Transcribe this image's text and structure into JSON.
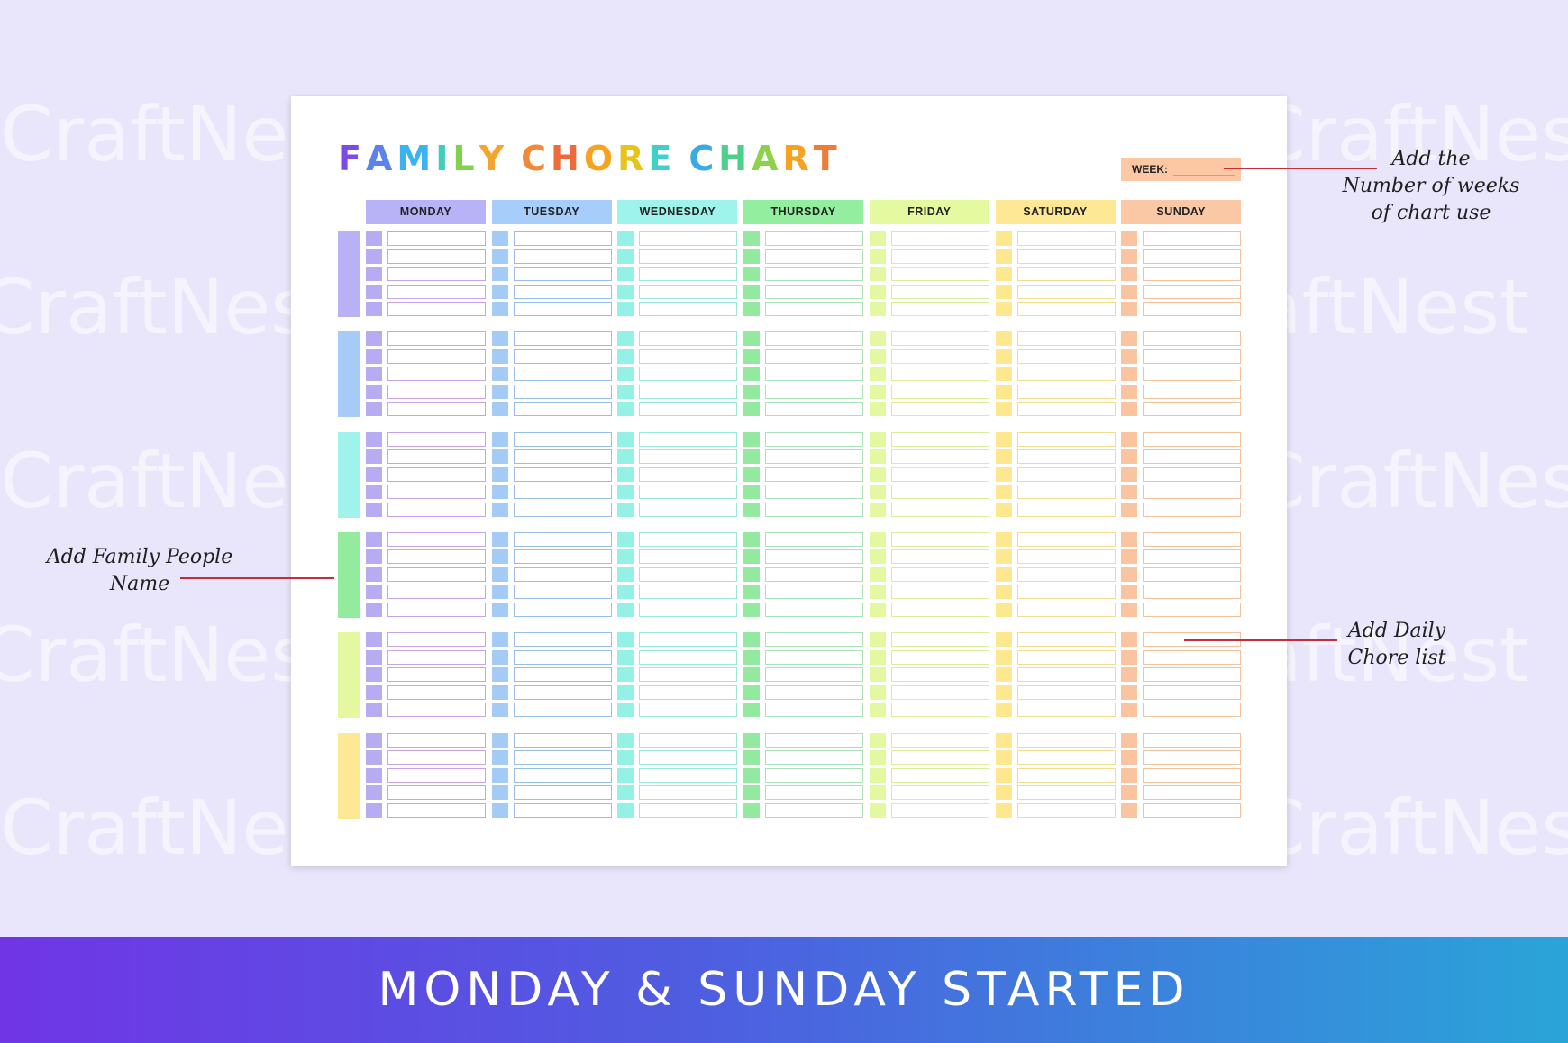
{
  "watermark": "CraftNest",
  "chart": {
    "title": "FAMILY CHORE CHART",
    "title_colors": [
      "#7b4be8",
      "#5b82ef",
      "#3db2f0",
      "#3fcfb8",
      "#7fd24a",
      "#f3a530",
      "#f08a3a",
      "#ef6a3b",
      "#f5a321",
      "#e6c41a",
      "#3fd0c8",
      "#3aaae3",
      "#4fd08a",
      "#8cd24a",
      "#f5a321",
      "#f07b34",
      "#ef6a3b"
    ],
    "week_label": "WEEK:",
    "days": [
      {
        "name": "MONDAY",
        "header_color": "#b8b2f6",
        "check_color": "#b7acf1",
        "border_color": "#c7a3e9"
      },
      {
        "name": "TUESDAY",
        "header_color": "#a7cdfa",
        "check_color": "#a3cbf6",
        "border_color": "#98bde6"
      },
      {
        "name": "WEDNESDAY",
        "header_color": "#9ef3eb",
        "check_color": "#95f0e6",
        "border_color": "#9be8de"
      },
      {
        "name": "THURSDAY",
        "header_color": "#93ee9f",
        "check_color": "#93e9a0",
        "border_color": "#a9e2b8"
      },
      {
        "name": "FRIDAY",
        "header_color": "#e5f9a0",
        "check_color": "#e4f8a1",
        "border_color": "#d9ec9a"
      },
      {
        "name": "SATURDAY",
        "header_color": "#fde895",
        "check_color": "#fde78f",
        "border_color": "#f1dd8f"
      },
      {
        "name": "SUNDAY",
        "header_color": "#fbc8a5",
        "check_color": "#fbc4a0",
        "border_color": "#f3c29d"
      }
    ],
    "people_colors": [
      "#b9b1f6",
      "#a6cbf7",
      "#9ff3ea",
      "#93ec9e",
      "#e4f8a2",
      "#fde894"
    ],
    "rows_per_person": 5
  },
  "annotations": {
    "weeks": "Add the\nNumber of weeks\nof chart use",
    "family": "Add Family People\nName",
    "chores": "Add Daily\nChore list"
  },
  "banner": "MONDAY & SUNDAY STARTED"
}
